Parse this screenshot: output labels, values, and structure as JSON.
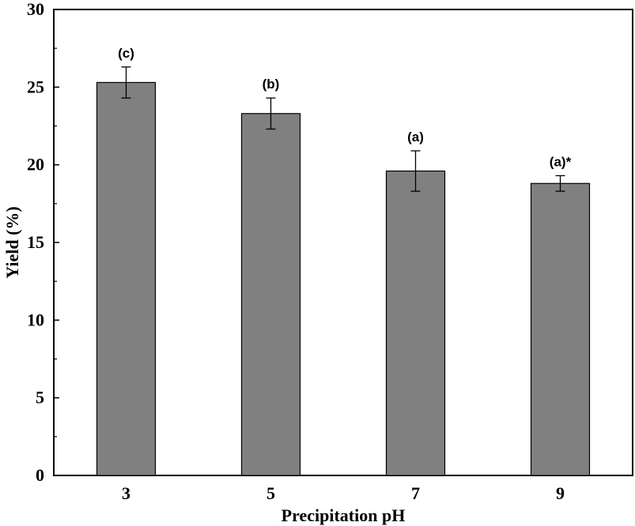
{
  "chart_data": {
    "type": "bar",
    "categories": [
      "3",
      "5",
      "7",
      "9"
    ],
    "values": [
      25.3,
      23.3,
      19.6,
      18.8
    ],
    "errors": [
      1.0,
      1.0,
      1.3,
      0.5
    ],
    "annotations": [
      "(c)",
      "(b)",
      "(a)",
      "(a)*"
    ],
    "xlabel": "Precipitation pH",
    "ylabel": "Yield (%)",
    "ylim": [
      0,
      30
    ],
    "yticks": [
      0,
      5,
      10,
      15,
      20,
      25,
      30
    ],
    "grid": false,
    "bar_color": "#808080",
    "bar_edge_color": "#000000"
  }
}
